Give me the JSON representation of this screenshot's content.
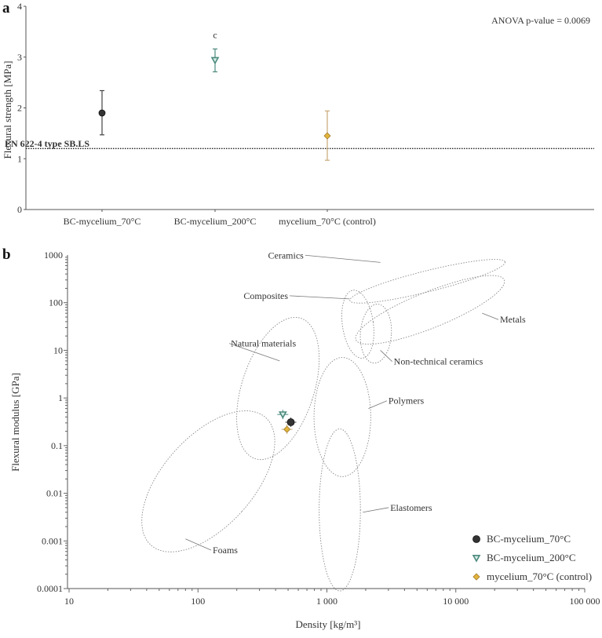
{
  "chart_data": [
    {
      "type": "scatter",
      "panel_label": "a",
      "ylabel": "Flexural strength [MPa]",
      "ylim": [
        0,
        4
      ],
      "yticks": [
        "0",
        "1",
        "2",
        "3",
        "4"
      ],
      "categories": [
        "BC-mycelium_70°C",
        "BC-mycelium_200°C",
        "mycelium_70°C (control)"
      ],
      "series": [
        {
          "category": "BC-mycelium_70°C",
          "mean": 1.9,
          "err_low": 1.47,
          "err_high": 2.34,
          "marker": "circle",
          "color": "#333333"
        },
        {
          "category": "BC-mycelium_200°C",
          "mean": 2.94,
          "err_low": 2.71,
          "err_high": 3.16,
          "marker": "triangle-down",
          "color": "#4d8a7e",
          "annotation": "c"
        },
        {
          "category": "mycelium_70°C (control)",
          "mean": 1.45,
          "err_low": 0.97,
          "err_high": 1.94,
          "marker": "diamond",
          "color": "#e3b43c"
        }
      ],
      "reference_line": {
        "label": "EN 622-4 type SB.LS",
        "value": 1.2
      },
      "annotation": "ANOVA p-value = 0.0069",
      "grid": false
    },
    {
      "type": "scatter",
      "panel_label": "b",
      "xlabel": "Density [kg/m³]",
      "ylabel": "Flexural modulus [GPa]",
      "xscale": "log",
      "yscale": "log",
      "xlim": [
        10,
        100000
      ],
      "ylim": [
        0.0001,
        1000
      ],
      "xticks": [
        "10",
        "100",
        "1 000",
        "10 000",
        "100 000"
      ],
      "yticks": [
        "0.0001",
        "0.001",
        "0.01",
        "0.1",
        "1",
        "10",
        "100",
        "1000"
      ],
      "regions": [
        "Ceramics",
        "Composites",
        "Metals",
        "Natural materials",
        "Non-technical ceramics",
        "Polymers",
        "Elastomers",
        "Foams"
      ],
      "series": [
        {
          "name": "BC-mycelium_70°C",
          "x": 525,
          "y": 0.31,
          "marker": "circle",
          "color": "#333333"
        },
        {
          "name": "BC-mycelium_200°C",
          "x": 455,
          "y": 0.45,
          "marker": "triangle-down",
          "color": "#4d8a7e"
        },
        {
          "name": "mycelium_70°C (control)",
          "x": 490,
          "y": 0.22,
          "marker": "diamond",
          "color": "#e3b43c"
        }
      ],
      "legend": "bottom-right",
      "grid": false
    }
  ]
}
